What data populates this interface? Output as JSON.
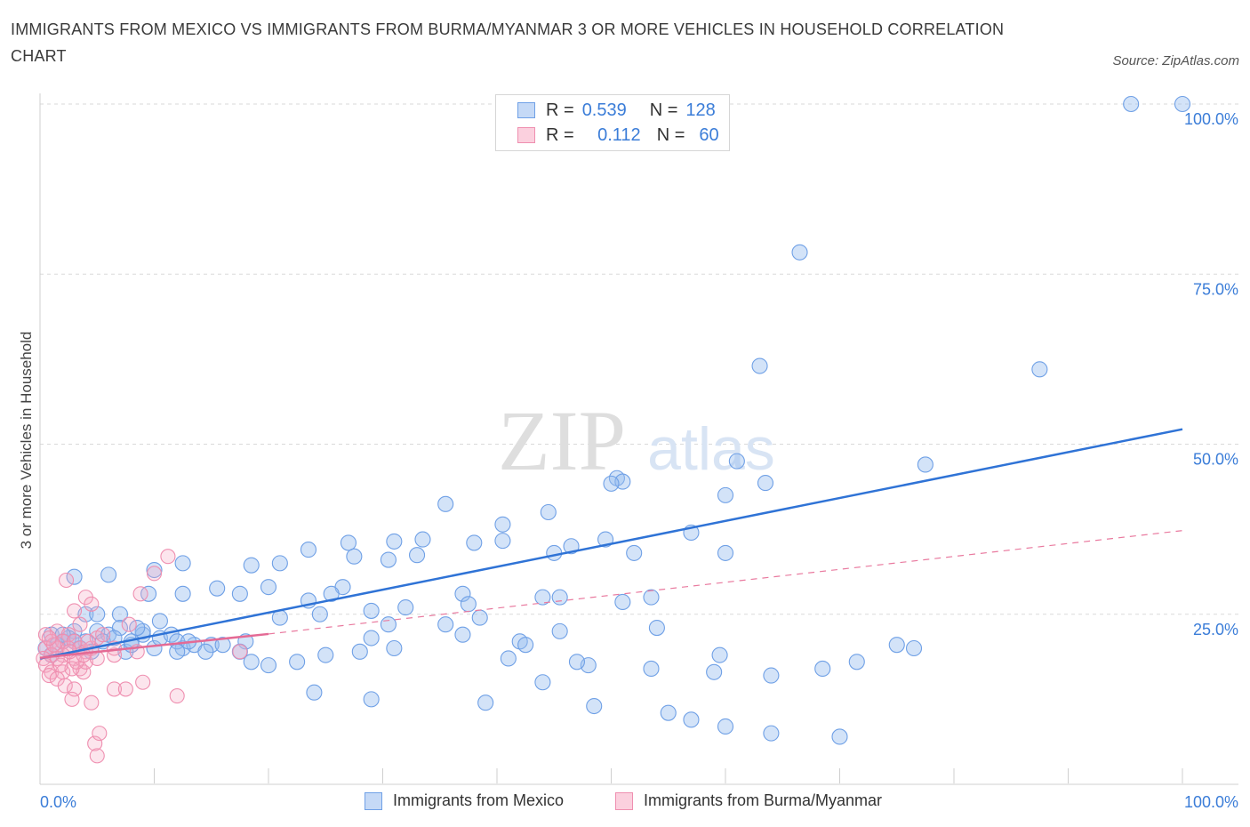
{
  "title": "IMMIGRANTS FROM MEXICO VS IMMIGRANTS FROM BURMA/MYANMAR 3 OR MORE VEHICLES IN HOUSEHOLD CORRELATION CHART",
  "source": "Source: ZipAtlas.com",
  "watermark": {
    "zip": "ZIP",
    "atlas": "atlas"
  },
  "legend": {
    "r_label": "R =",
    "n_label": "N =",
    "rows": [
      {
        "r": "0.539",
        "n": "128",
        "color": "#6fa0e6"
      },
      {
        "r": "0.112",
        "n": "60",
        "color": "#ef8fb0"
      }
    ]
  },
  "chart_data": {
    "type": "scatter",
    "title": "IMMIGRANTS FROM MEXICO VS IMMIGRANTS FROM BURMA/MYANMAR 3 OR MORE VEHICLES IN HOUSEHOLD CORRELATION CHART",
    "xlabel": "",
    "ylabel": "3 or more Vehicles in Household",
    "xlim": [
      0,
      100
    ],
    "ylim": [
      0,
      100
    ],
    "x_tick_labels": [
      "0.0%",
      "100.0%"
    ],
    "y_tick_labels": [
      "25.0%",
      "50.0%",
      "75.0%",
      "100.0%"
    ],
    "y_ticks": [
      25,
      50,
      75,
      100
    ],
    "grid": true,
    "legend_placement": "top-center",
    "series": [
      {
        "name": "Immigrants from Mexico",
        "color": "#6fa0e6",
        "trend": {
          "x": [
            0,
            100
          ],
          "y": [
            18.5,
            52.2
          ],
          "style": "solid"
        },
        "points": [
          [
            95.5,
            100
          ],
          [
            100,
            100
          ],
          [
            66.5,
            78.2
          ],
          [
            63,
            61.5
          ],
          [
            87.5,
            61
          ],
          [
            61,
            47.5
          ],
          [
            77.5,
            47
          ],
          [
            63.5,
            44.3
          ],
          [
            50.5,
            45
          ],
          [
            51,
            44.5
          ],
          [
            50,
            44.2
          ],
          [
            60,
            42.5
          ],
          [
            35.5,
            41.2
          ],
          [
            44.5,
            40
          ],
          [
            40.5,
            38.2
          ],
          [
            57,
            37
          ],
          [
            33.5,
            36
          ],
          [
            49.5,
            36
          ],
          [
            40.5,
            35.8
          ],
          [
            46.5,
            35
          ],
          [
            31,
            35.7
          ],
          [
            38,
            35.5
          ],
          [
            27,
            35.5
          ],
          [
            23.5,
            34.5
          ],
          [
            27.5,
            33.5
          ],
          [
            33,
            33.7
          ],
          [
            45,
            34
          ],
          [
            52,
            34
          ],
          [
            60,
            34
          ],
          [
            30.5,
            33
          ],
          [
            12.5,
            32.5
          ],
          [
            18.5,
            32.2
          ],
          [
            10,
            31.5
          ],
          [
            21,
            32.5
          ],
          [
            6,
            30.8
          ],
          [
            3,
            30.5
          ],
          [
            26.5,
            29
          ],
          [
            20,
            29
          ],
          [
            15.5,
            28.8
          ],
          [
            12.5,
            28
          ],
          [
            9.5,
            28
          ],
          [
            17.5,
            28
          ],
          [
            25.5,
            28
          ],
          [
            37,
            28
          ],
          [
            23.5,
            27
          ],
          [
            51,
            26.8
          ],
          [
            53.5,
            27.5
          ],
          [
            45.5,
            27.5
          ],
          [
            44,
            27.5
          ],
          [
            37.5,
            26.5
          ],
          [
            32,
            26
          ],
          [
            29,
            25.5
          ],
          [
            24.5,
            25
          ],
          [
            21,
            24.5
          ],
          [
            7,
            25
          ],
          [
            4,
            25
          ],
          [
            5,
            25
          ],
          [
            10.5,
            24
          ],
          [
            38.5,
            24.5
          ],
          [
            35.5,
            23.5
          ],
          [
            30.5,
            23.5
          ],
          [
            54,
            23
          ],
          [
            45.5,
            22.5
          ],
          [
            37,
            22
          ],
          [
            29,
            21.5
          ],
          [
            18,
            21
          ],
          [
            15,
            20.5
          ],
          [
            12.5,
            20
          ],
          [
            10,
            20
          ],
          [
            7.5,
            19.5
          ],
          [
            8,
            20.5
          ],
          [
            13.5,
            20.5
          ],
          [
            42,
            21
          ],
          [
            42.5,
            20.5
          ],
          [
            31,
            20
          ],
          [
            28,
            19.5
          ],
          [
            25,
            19
          ],
          [
            22.5,
            18
          ],
          [
            20,
            17.5
          ],
          [
            1,
            22
          ],
          [
            2,
            21
          ],
          [
            3,
            22.5
          ],
          [
            4,
            21
          ],
          [
            5,
            22.5
          ],
          [
            6,
            22
          ],
          [
            7,
            23
          ],
          [
            8,
            21
          ],
          [
            9,
            22
          ],
          [
            10.5,
            21.5
          ],
          [
            11.5,
            22
          ],
          [
            12,
            21
          ],
          [
            9,
            22.5
          ],
          [
            8.5,
            23
          ],
          [
            2.5,
            21.5
          ],
          [
            1.5,
            20.5
          ],
          [
            0.5,
            20
          ],
          [
            1,
            19
          ],
          [
            3.5,
            20
          ],
          [
            4.5,
            19.5
          ],
          [
            5.5,
            21
          ],
          [
            6.5,
            21.5
          ],
          [
            2,
            22
          ],
          [
            3,
            21
          ],
          [
            12,
            19.5
          ],
          [
            14.5,
            19.5
          ],
          [
            13,
            21
          ],
          [
            16,
            20.5
          ],
          [
            17.5,
            19.5
          ],
          [
            18.5,
            18
          ],
          [
            41,
            18.5
          ],
          [
            48,
            17.5
          ],
          [
            53.5,
            17
          ],
          [
            59,
            16.5
          ],
          [
            64,
            16
          ],
          [
            68.5,
            17
          ],
          [
            71.5,
            18
          ],
          [
            24,
            13.5
          ],
          [
            29,
            12.5
          ],
          [
            39,
            12
          ],
          [
            48.5,
            11.5
          ],
          [
            55,
            10.5
          ],
          [
            57,
            9.5
          ],
          [
            60,
            8.5
          ],
          [
            64,
            7.5
          ],
          [
            70,
            7
          ],
          [
            47,
            18
          ],
          [
            44,
            15
          ],
          [
            76.5,
            20
          ],
          [
            75,
            20.5
          ],
          [
            59.5,
            19
          ]
        ]
      },
      {
        "name": "Immigrants from Burma/Myanmar",
        "color": "#ef8fb0",
        "trend": {
          "x": [
            0,
            20
          ],
          "y": [
            18.6,
            22.1
          ],
          "style": "solid",
          "extension": {
            "x": [
              20,
              100
            ],
            "y": [
              22.1,
              37.3
            ],
            "style": "dashed"
          }
        },
        "points": [
          [
            11.2,
            33.5
          ],
          [
            10,
            31
          ],
          [
            2.3,
            30
          ],
          [
            4,
            27.5
          ],
          [
            8.8,
            28
          ],
          [
            4.5,
            26.5
          ],
          [
            3,
            25.5
          ],
          [
            7.8,
            23.5
          ],
          [
            3.5,
            23.5
          ],
          [
            1.5,
            22.5
          ],
          [
            2.5,
            22
          ],
          [
            0.5,
            22
          ],
          [
            1,
            21
          ],
          [
            2,
            21
          ],
          [
            3,
            21
          ],
          [
            0.5,
            20
          ],
          [
            1.5,
            20
          ],
          [
            2.5,
            20
          ],
          [
            3.5,
            20
          ],
          [
            4,
            19.5
          ],
          [
            1,
            19
          ],
          [
            2,
            19
          ],
          [
            0.3,
            18.5
          ],
          [
            1.5,
            18.5
          ],
          [
            3,
            18.5
          ],
          [
            0.5,
            17.5
          ],
          [
            1,
            16.5
          ],
          [
            2,
            16.5
          ],
          [
            3.5,
            17
          ],
          [
            0.8,
            16
          ],
          [
            1.5,
            15.5
          ],
          [
            3.8,
            16.5
          ],
          [
            4,
            18
          ],
          [
            4.5,
            20
          ],
          [
            5,
            21.5
          ],
          [
            5.5,
            22
          ],
          [
            6.5,
            19
          ],
          [
            6.5,
            20
          ],
          [
            2.2,
            14.5
          ],
          [
            3,
            14
          ],
          [
            4.5,
            12
          ],
          [
            2.8,
            12.5
          ],
          [
            4.8,
            6
          ],
          [
            5,
            4.2
          ],
          [
            5.2,
            7.5
          ],
          [
            6.5,
            14
          ],
          [
            7.5,
            14
          ],
          [
            8.5,
            19.5
          ],
          [
            9,
            15
          ],
          [
            12,
            13
          ],
          [
            17.5,
            19.5
          ],
          [
            2.8,
            17
          ],
          [
            3.2,
            18
          ],
          [
            1.8,
            17.5
          ],
          [
            4.2,
            21
          ],
          [
            5,
            18.5
          ],
          [
            1.2,
            20.5
          ],
          [
            0.8,
            21.5
          ],
          [
            2.6,
            19.5
          ],
          [
            3.8,
            19
          ]
        ]
      }
    ]
  },
  "bottom_legend": [
    "Immigrants from Mexico",
    "Immigrants from Burma/Myanmar"
  ]
}
